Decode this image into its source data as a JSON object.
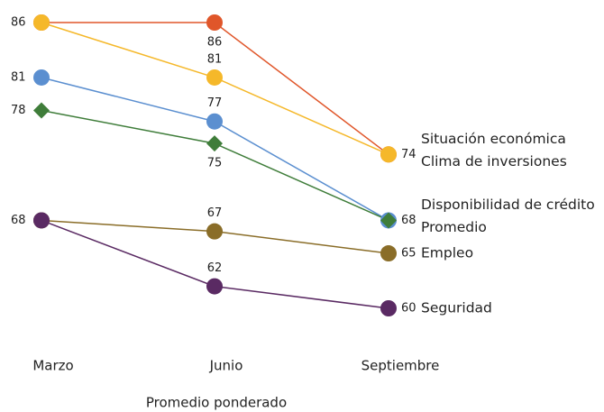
{
  "chart_data": {
    "type": "slope",
    "x_label": "Promedio ponderado",
    "categories": [
      "Marzo",
      "Junio",
      "Septiembre"
    ],
    "ylim": [
      60,
      86
    ],
    "series": [
      {
        "name": "Situación económica",
        "color": "#e0562a",
        "marker": "circle",
        "label_side": "below",
        "values": [
          86,
          86,
          74
        ]
      },
      {
        "name": "Clima de inversiones",
        "color": "#f5b82a",
        "marker": "circle",
        "values": [
          86,
          81,
          74
        ]
      },
      {
        "name": "Disponibilidad de crédito",
        "color": "#5b8fd0",
        "marker": "circle",
        "values": [
          81,
          77,
          68
        ]
      },
      {
        "name": "Promedio",
        "color": "#3f7d3a",
        "marker": "diamond",
        "label_side": "below",
        "values": [
          78,
          75,
          68
        ]
      },
      {
        "name": "Empleo",
        "color": "#8a6d28",
        "marker": "circle",
        "values": [
          68,
          67,
          65
        ]
      },
      {
        "name": "Seguridad",
        "color": "#5a2a63",
        "marker": "circle",
        "values": [
          68,
          62,
          60
        ]
      }
    ]
  }
}
